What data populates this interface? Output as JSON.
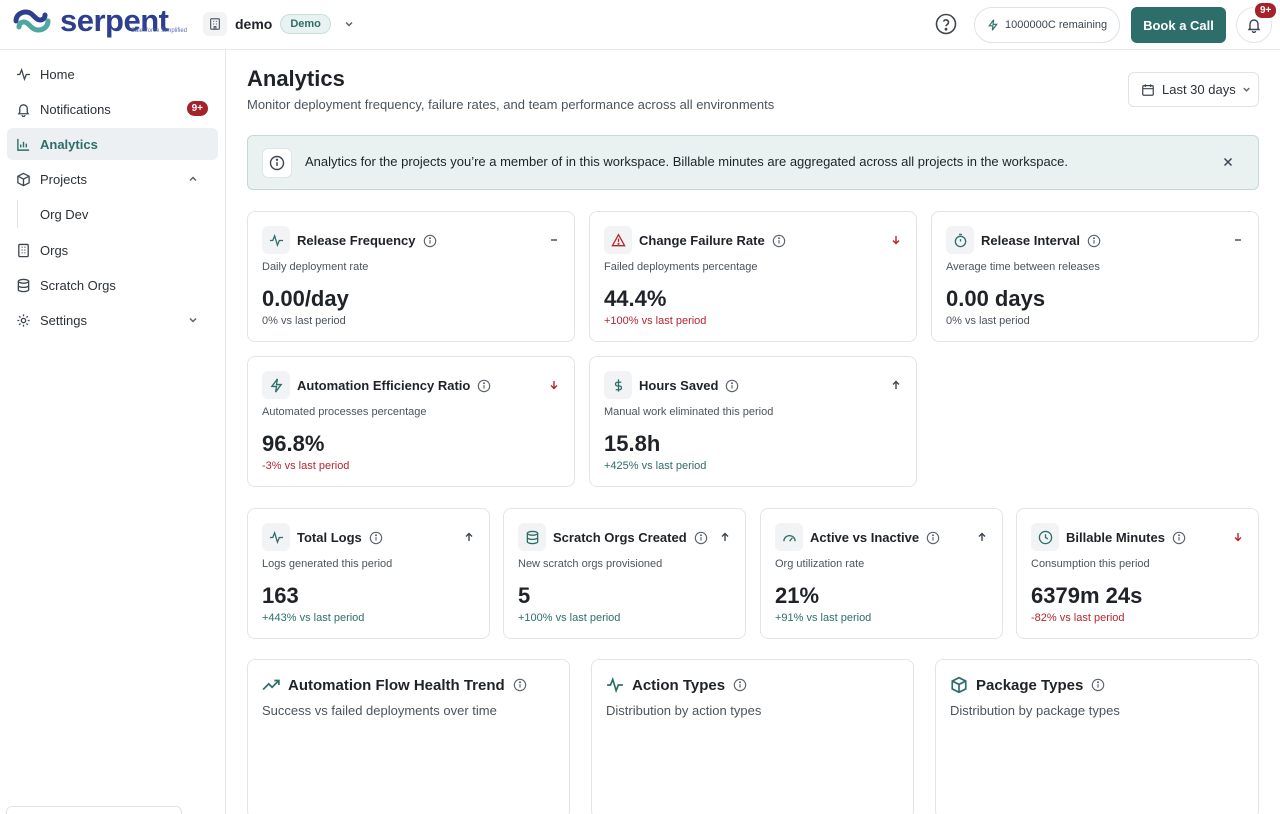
{
  "brand": {
    "name": "serpent",
    "tagline": "Salesforce Simplified"
  },
  "workspace": {
    "name": "demo",
    "badge": "Demo"
  },
  "header": {
    "credits": "1000000C remaining",
    "book_call": "Book a Call",
    "notif_badge": "9+"
  },
  "sidebar": {
    "items": [
      {
        "label": "Home"
      },
      {
        "label": "Notifications",
        "badge": "9+"
      },
      {
        "label": "Analytics"
      },
      {
        "label": "Projects"
      },
      {
        "label": "Orgs"
      },
      {
        "label": "Scratch Orgs"
      },
      {
        "label": "Settings"
      }
    ],
    "sub_items": [
      {
        "label": "Org Dev"
      }
    ]
  },
  "page": {
    "title": "Analytics",
    "subtitle": "Monitor deployment frequency, failure rates, and team performance across all environments",
    "range": "Last 30 days",
    "banner": "Analytics for the projects you’re a member of in this workspace. Billable minutes are aggregated across all projects in the workspace."
  },
  "metrics": [
    {
      "title": "Release Frequency",
      "desc": "Daily deployment rate",
      "value": "0.00/day",
      "delta": "0% vs last period",
      "trend": "flat",
      "icon": "pulse-icon"
    },
    {
      "title": "Change Failure Rate",
      "desc": "Failed deployments percentage",
      "value": "44.4%",
      "delta": "+100% vs last period",
      "trend": "down",
      "icon": "alert-triangle-icon"
    },
    {
      "title": "Release Interval",
      "desc": "Average time between releases",
      "value": "0.00 days",
      "delta": "0% vs last period",
      "trend": "flat",
      "icon": "timer-icon"
    },
    {
      "title": "Automation Efficiency Ratio",
      "desc": "Automated processes percentage",
      "value": "96.8%",
      "delta": "-3% vs last period",
      "trend": "down",
      "icon": "bolt-icon"
    },
    {
      "title": "Hours Saved",
      "desc": "Manual work eliminated this period",
      "value": "15.8h",
      "delta": "+425% vs last period",
      "trend": "up",
      "icon": "dollar-icon"
    },
    {
      "title": "Total Logs",
      "desc": "Logs generated this period",
      "value": "163",
      "delta": "+443% vs last period",
      "trend": "up",
      "icon": "pulse-icon"
    },
    {
      "title": "Scratch Orgs Created",
      "desc": "New scratch orgs provisioned",
      "value": "5",
      "delta": "+100% vs last period",
      "trend": "up",
      "icon": "database-icon"
    },
    {
      "title": "Active vs Inactive",
      "desc": "Org utilization rate",
      "value": "21%",
      "delta": "+91% vs last period",
      "trend": "up",
      "icon": "gauge-icon"
    },
    {
      "title": "Billable Minutes",
      "desc": "Consumption this period",
      "value": "6379m 24s",
      "delta": "-82% vs last period",
      "trend": "down",
      "icon": "clock-icon"
    }
  ],
  "charts": [
    {
      "title": "Automation Flow Health Trend",
      "desc": "Success vs failed deployments over time",
      "icon": "trending-up-icon"
    },
    {
      "title": "Action Types",
      "desc": "Distribution by action types",
      "icon": "pulse-icon"
    },
    {
      "title": "Package Types",
      "desc": "Distribution by package types",
      "icon": "package-icon"
    }
  ],
  "colors": {
    "accent": "#2e6e6a",
    "badge": "#a5222c",
    "negative": "#b3262f",
    "banner_bg": "#eaf2f1"
  }
}
